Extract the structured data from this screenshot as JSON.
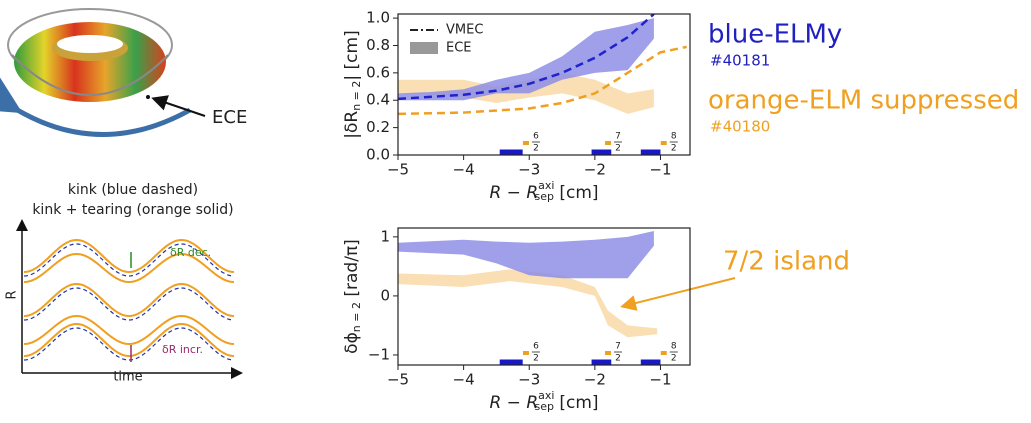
{
  "chart_data": [
    {
      "type": "line",
      "ylabel": {
        "main": "|δR",
        "sub": "n = 2",
        "tail": "| [cm]"
      },
      "xlabel": {
        "main": "R − R",
        "sup": "axi",
        "sub": "sep",
        "tail": " [cm]"
      },
      "xlim": [
        -5,
        -0.55
      ],
      "ylim": [
        0,
        1.03
      ],
      "xticks": [
        {
          "value": -5,
          "label": "−5"
        },
        {
          "value": -4,
          "label": "−4"
        },
        {
          "value": -3,
          "label": "−3"
        },
        {
          "value": -2,
          "label": "−2"
        },
        {
          "value": -1,
          "label": "−1"
        }
      ],
      "yticks": [
        {
          "value": 0,
          "label": "0.0"
        },
        0.2,
        0.4,
        0.6,
        0.8,
        {
          "value": 1,
          "label": "1.0"
        }
      ],
      "legend": [
        {
          "name": "VMEC",
          "style": "dashdot",
          "color": "#222222"
        },
        {
          "name": "ECE",
          "style": "band",
          "color": "#999999"
        }
      ],
      "series": [
        {
          "kind": "band",
          "color": "#f8d9a6",
          "x": [
            -5,
            -4.5,
            -4,
            -3.5,
            -3,
            -2.5,
            -2,
            -1.5,
            -1.1
          ],
          "lower": [
            0.45,
            0.44,
            0.42,
            0.38,
            0.42,
            0.45,
            0.4,
            0.3,
            0.35
          ],
          "upper": [
            0.55,
            0.55,
            0.55,
            0.5,
            0.55,
            0.6,
            0.55,
            0.45,
            0.48
          ]
        },
        {
          "kind": "band",
          "color": "#8e8ee6",
          "x": [
            -5,
            -4.5,
            -4,
            -3.5,
            -3,
            -2.5,
            -2,
            -1.5,
            -1.1
          ],
          "lower": [
            0.4,
            0.4,
            0.4,
            0.45,
            0.45,
            0.55,
            0.6,
            0.62,
            0.85
          ],
          "upper": [
            0.45,
            0.46,
            0.48,
            0.55,
            0.6,
            0.72,
            0.9,
            0.95,
            1.0
          ]
        },
        {
          "kind": "line",
          "color": "#f0a020",
          "x": [
            -5,
            -4,
            -3,
            -2.5,
            -2,
            -1.5,
            -1,
            -0.6
          ],
          "values": [
            0.3,
            0.31,
            0.34,
            0.38,
            0.45,
            0.6,
            0.75,
            0.79
          ]
        },
        {
          "kind": "line",
          "color": "#2222cc",
          "x": [
            -5,
            -4,
            -3.5,
            -3,
            -2.5,
            -2,
            -1.5,
            -1.1
          ],
          "values": [
            0.41,
            0.44,
            0.47,
            0.52,
            0.6,
            0.71,
            0.86,
            1.03
          ]
        }
      ],
      "rational_surfaces": [
        {
          "numerator": "6",
          "denominator": "2",
          "x": -3.05,
          "range": [
            -3.45,
            -3.1
          ]
        },
        {
          "numerator": "7",
          "denominator": "2",
          "x": -1.8,
          "range": [
            -2.05,
            -1.75
          ]
        },
        {
          "numerator": "8",
          "denominator": "2",
          "x": -0.95,
          "range": [
            -1.3,
            -1.0
          ]
        }
      ]
    },
    {
      "type": "line",
      "ylabel": {
        "main": "δϕ",
        "sub": "n = 2",
        "tail": " [rad/π]"
      },
      "xlabel": {
        "main": "R − R",
        "sup": "axi",
        "sub": "sep",
        "tail": " [cm]"
      },
      "xlim": [
        -5,
        -0.55
      ],
      "ylim": [
        -1.17,
        1.15
      ],
      "xticks": [
        {
          "value": -5,
          "label": "−5"
        },
        {
          "value": -4,
          "label": "−4"
        },
        {
          "value": -3,
          "label": "−3"
        },
        {
          "value": -2,
          "label": "−2"
        },
        {
          "value": -1,
          "label": "−1"
        }
      ],
      "yticks": [
        {
          "value": -1,
          "label": "−1"
        },
        0,
        1
      ],
      "series": [
        {
          "kind": "band",
          "color": "#f8d9a6",
          "x": [
            -5,
            -4,
            -3.3,
            -2.5,
            -2,
            -1.8,
            -1.5,
            -1.05
          ],
          "lower": [
            0.2,
            0.15,
            0.25,
            0.15,
            0.0,
            -0.5,
            -0.7,
            -0.65
          ],
          "upper": [
            0.38,
            0.35,
            0.45,
            0.35,
            0.15,
            -0.25,
            -0.5,
            -0.55
          ]
        },
        {
          "kind": "band",
          "color": "#8e8ee6",
          "x": [
            -5,
            -4,
            -3.5,
            -3,
            -2.5,
            -2,
            -1.5,
            -1.1
          ],
          "lower": [
            0.75,
            0.7,
            0.55,
            0.35,
            0.3,
            0.3,
            0.3,
            0.85
          ],
          "upper": [
            0.9,
            0.95,
            0.92,
            0.9,
            0.92,
            0.95,
            1.0,
            1.1
          ]
        }
      ],
      "annotation": "7/2 island",
      "rational_surfaces": [
        {
          "numerator": "6",
          "denominator": "2",
          "x": -3.05,
          "range": [
            -3.45,
            -3.1
          ]
        },
        {
          "numerator": "7",
          "denominator": "2",
          "x": -1.8,
          "range": [
            -2.05,
            -1.75
          ]
        },
        {
          "numerator": "8",
          "denominator": "2",
          "x": -0.95,
          "range": [
            -1.3,
            -1.0
          ]
        }
      ]
    }
  ],
  "labels": {
    "blue_title": "blue-ELMy",
    "blue_shot": "#40181",
    "orange_title": "orange-ELM suppressed",
    "orange_shot": "#40180"
  },
  "torus": {
    "label": "ECE"
  },
  "sketch": {
    "title1": "kink (blue dashed)",
    "title2": "kink + tearing (orange solid)",
    "ylabel": "R",
    "xlabel": "time",
    "top_note": "δR dec.",
    "bottom_note": "δR incr."
  }
}
